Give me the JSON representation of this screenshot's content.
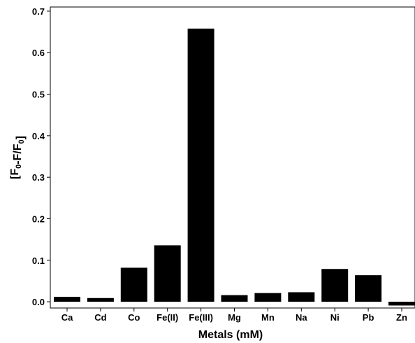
{
  "chart_data": {
    "type": "bar",
    "categories": [
      "Ca",
      "Cd",
      "Co",
      "Fe(II)",
      "Fe(III)",
      "Mg",
      "Mn",
      "Na",
      "Ni",
      "Pb",
      "Zn"
    ],
    "values": [
      0.012,
      0.009,
      0.082,
      0.136,
      0.658,
      0.016,
      0.021,
      0.023,
      0.079,
      0.064,
      -0.009
    ],
    "xlabel": "Metals (mM)",
    "ylabel": "[F0-F/F0]",
    "ylim": [
      -0.015,
      0.71
    ],
    "yticks": [
      0.0,
      0.1,
      0.2,
      0.3,
      0.4,
      0.5,
      0.6,
      0.7
    ],
    "ytick_labels": [
      "0.0",
      "0.1",
      "0.2",
      "0.3",
      "0.4",
      "0.5",
      "0.6",
      "0.7"
    ],
    "grid": false,
    "bar_color": "#000000"
  }
}
